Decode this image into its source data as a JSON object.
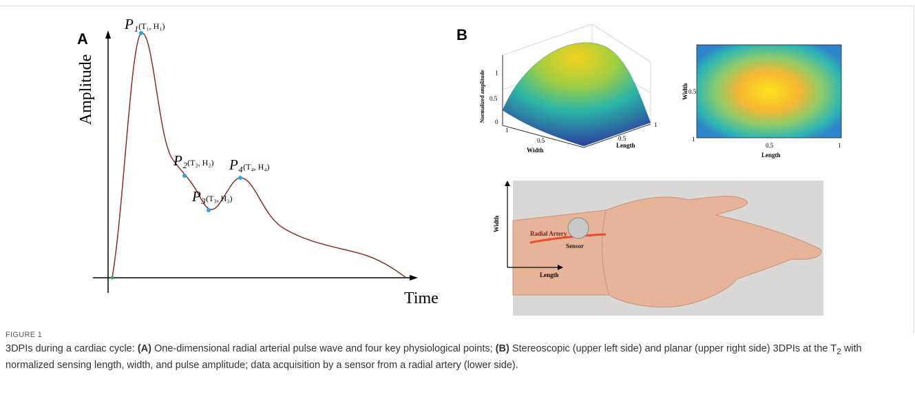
{
  "panel_a": {
    "letter": "A",
    "y_axis_label": "Amplitude",
    "x_axis_label": "Time",
    "points": [
      {
        "name": "P₁",
        "coords": "(T₁, H₁)"
      },
      {
        "name": "P₂",
        "coords": "(T₂, H₂)"
      },
      {
        "name": "P₃",
        "coords": "(T₃, H₃)"
      },
      {
        "name": "P₄",
        "coords": "(T₄, H₄)"
      }
    ]
  },
  "panel_b": {
    "letter": "B",
    "surface_plot": {
      "z_label": "Normalized amplitude",
      "z_ticks": [
        "0",
        "0.5",
        "1"
      ],
      "width_label": "Width",
      "width_ticks": [
        "0.5",
        "1"
      ],
      "length_label": "Length",
      "length_ticks": [
        "0.5",
        "1"
      ]
    },
    "heatmap": {
      "y_label": "Width",
      "y_ticks": [
        "0.5",
        "1"
      ],
      "x_label": "Length",
      "x_ticks": [
        "0.5",
        "1"
      ]
    },
    "photo": {
      "artery_label": "Radial Artery",
      "sensor_label": "Sensor",
      "y_label": "Width",
      "x_label": "Length"
    }
  },
  "caption": {
    "label": "FIGURE 1",
    "parts": [
      "3DPIs during a cardiac cycle: ",
      "(A)",
      " One-dimensional radial arterial pulse wave and four key physiological points; ",
      "(B)",
      " Stereoscopic (upper left side) and planar (upper right side) 3DPIs at the T",
      "2",
      " with normalized sensing length, width, and pulse amplitude; data acquisition by a sensor from a radial artery (lower side)."
    ]
  }
}
